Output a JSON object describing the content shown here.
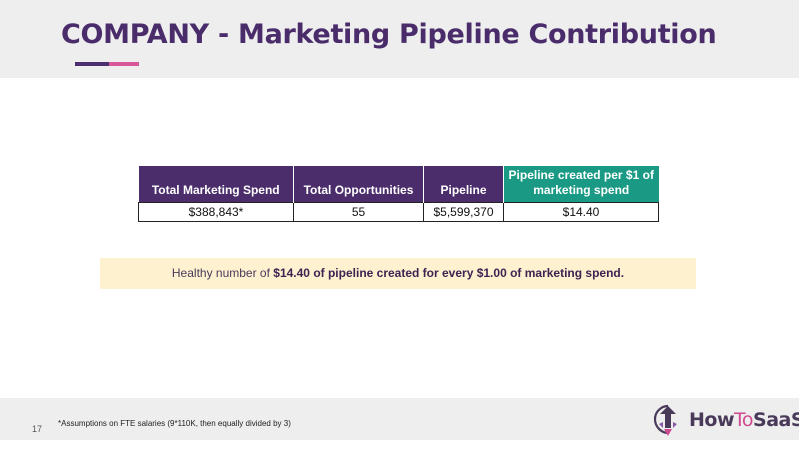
{
  "header": {
    "title": "COMPANY - Marketing Pipeline Contribution"
  },
  "table": {
    "headers": [
      "Total Marketing Spend",
      "Total Opportunities",
      "Pipeline",
      "Pipeline created per $1 of marketing spend"
    ],
    "rows": [
      [
        "$388,843*",
        "55",
        "$5,599,370",
        "$14.40"
      ]
    ]
  },
  "callout": {
    "prefix": "Healthy number of ",
    "emphasis": "$14.40 of pipeline created for every $1.00 of marketing spend."
  },
  "footer": {
    "page_number": "17",
    "footnote": "*Assumptions on FTE salaries (9*110K, then equally divided by 3)",
    "logo": {
      "part1": "How",
      "part2": "To",
      "part3": "SaaS",
      "icon": "rocket-arrow-icon"
    }
  },
  "colors": {
    "title": "#4a2c6b",
    "header_purple": "#4b2d6b",
    "header_teal": "#1a9a85",
    "accent_pink": "#d9569b",
    "callout_bg": "#fdf1cf",
    "band_gray": "#eeeeee"
  }
}
